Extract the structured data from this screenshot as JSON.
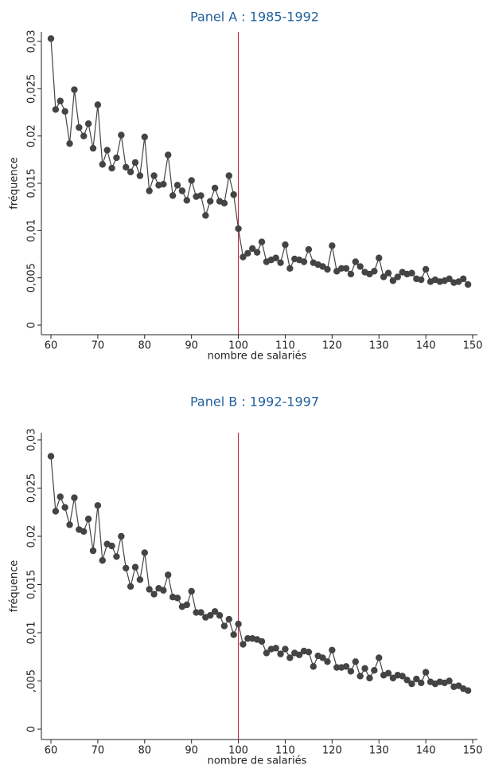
{
  "chart_data": [
    {
      "type": "line",
      "title": "Panel A : 1985-1992",
      "xlabel": "nombre de salariés",
      "ylabel": "fréquence",
      "x": [
        60,
        61,
        62,
        63,
        64,
        65,
        66,
        67,
        68,
        69,
        70,
        71,
        72,
        73,
        74,
        75,
        76,
        77,
        78,
        79,
        80,
        81,
        82,
        83,
        84,
        85,
        86,
        87,
        88,
        89,
        90,
        91,
        92,
        93,
        94,
        95,
        96,
        97,
        98,
        99,
        100,
        101,
        102,
        103,
        104,
        105,
        106,
        107,
        108,
        109,
        110,
        111,
        112,
        113,
        114,
        115,
        116,
        117,
        118,
        119,
        120,
        121,
        122,
        123,
        124,
        125,
        126,
        127,
        128,
        129,
        130,
        131,
        132,
        133,
        134,
        135,
        136,
        137,
        138,
        139,
        140,
        141,
        142,
        143,
        144,
        145,
        146,
        147,
        148,
        149
      ],
      "series": [
        {
          "color": "#444444",
          "values": [
            0.0303,
            0.0228,
            0.0237,
            0.0226,
            0.0192,
            0.0249,
            0.0209,
            0.02,
            0.0213,
            0.0187,
            0.0233,
            0.017,
            0.0185,
            0.0166,
            0.0177,
            0.0201,
            0.0167,
            0.0162,
            0.0172,
            0.0158,
            0.0199,
            0.0142,
            0.0158,
            0.0148,
            0.0149,
            0.018,
            0.0137,
            0.0148,
            0.0142,
            0.0132,
            0.0153,
            0.0136,
            0.0137,
            0.0116,
            0.0131,
            0.0145,
            0.0131,
            0.0129,
            0.0158,
            0.0138,
            0.0102,
            0.0072,
            0.0076,
            0.0081,
            0.0077,
            0.0088,
            0.0067,
            0.0069,
            0.0071,
            0.0066,
            0.0085,
            0.006,
            0.007,
            0.0069,
            0.0067,
            0.008,
            0.0066,
            0.0064,
            0.0062,
            0.0059,
            0.0084,
            0.0057,
            0.006,
            0.006,
            0.0054,
            0.0067,
            0.0062,
            0.0056,
            0.0054,
            0.0057,
            0.0071,
            0.0051,
            0.0055,
            0.0047,
            0.0051,
            0.0056,
            0.0054,
            0.0055,
            0.0049,
            0.0048,
            0.0059,
            0.0046,
            0.0048,
            0.0046,
            0.0047,
            0.0049,
            0.0045,
            0.0046,
            0.0049,
            0.0043
          ]
        }
      ],
      "xlim": [
        60,
        150
      ],
      "xticks": [
        60,
        70,
        80,
        90,
        100,
        110,
        120,
        130,
        140,
        150
      ],
      "ylim": [
        0,
        0.03
      ],
      "yticks": [
        0,
        {
          "value": 0.005,
          "label": "0,005"
        },
        {
          "value": 0.01,
          "label": "0,01"
        },
        {
          "value": 0.015,
          "label": "0,015"
        },
        {
          "value": 0.02,
          "label": "0,02"
        },
        {
          "value": 0.025,
          "label": "0,025"
        },
        {
          "value": 0.03,
          "label": "0,03"
        }
      ],
      "vline": {
        "x": 100,
        "color": "#c0304a"
      }
    },
    {
      "type": "line",
      "title": "Panel B : 1992-1997",
      "xlabel": "nombre de salariés",
      "ylabel": "fréquence",
      "x": [
        60,
        61,
        62,
        63,
        64,
        65,
        66,
        67,
        68,
        69,
        70,
        71,
        72,
        73,
        74,
        75,
        76,
        77,
        78,
        79,
        80,
        81,
        82,
        83,
        84,
        85,
        86,
        87,
        88,
        89,
        90,
        91,
        92,
        93,
        94,
        95,
        96,
        97,
        98,
        99,
        100,
        101,
        102,
        103,
        104,
        105,
        106,
        107,
        108,
        109,
        110,
        111,
        112,
        113,
        114,
        115,
        116,
        117,
        118,
        119,
        120,
        121,
        122,
        123,
        124,
        125,
        126,
        127,
        128,
        129,
        130,
        131,
        132,
        133,
        134,
        135,
        136,
        137,
        138,
        139,
        140,
        141,
        142,
        143,
        144,
        145,
        146,
        147,
        148,
        149
      ],
      "series": [
        {
          "color": "#444444",
          "values": [
            0.0283,
            0.0226,
            0.0241,
            0.023,
            0.0212,
            0.024,
            0.0207,
            0.0205,
            0.0218,
            0.0185,
            0.0232,
            0.0175,
            0.0192,
            0.019,
            0.0179,
            0.02,
            0.0167,
            0.0148,
            0.0168,
            0.0155,
            0.0183,
            0.0145,
            0.014,
            0.0146,
            0.0144,
            0.016,
            0.0137,
            0.0136,
            0.0127,
            0.0129,
            0.0143,
            0.0121,
            0.0121,
            0.0116,
            0.0118,
            0.0122,
            0.0118,
            0.0107,
            0.0114,
            0.0098,
            0.0109,
            0.0088,
            0.0094,
            0.0094,
            0.0093,
            0.0091,
            0.0079,
            0.0083,
            0.0084,
            0.0078,
            0.0083,
            0.0074,
            0.0079,
            0.0077,
            0.0081,
            0.008,
            0.0065,
            0.0076,
            0.0074,
            0.007,
            0.0082,
            0.0064,
            0.0064,
            0.0065,
            0.006,
            0.007,
            0.0055,
            0.0063,
            0.0053,
            0.0061,
            0.0074,
            0.0056,
            0.0058,
            0.0053,
            0.0056,
            0.0055,
            0.0051,
            0.0047,
            0.0052,
            0.0048,
            0.0059,
            0.0049,
            0.0047,
            0.0049,
            0.0048,
            0.005,
            0.0044,
            0.0045,
            0.0042,
            0.004
          ]
        }
      ],
      "xlim": [
        60,
        150
      ],
      "xticks": [
        60,
        70,
        80,
        90,
        100,
        110,
        120,
        130,
        140,
        150
      ],
      "ylim": [
        0,
        0.03
      ],
      "yticks": [
        0,
        {
          "value": 0.005,
          "label": ",005"
        },
        {
          "value": 0.01,
          "label": "0,01"
        },
        {
          "value": 0.015,
          "label": "0,015"
        },
        {
          "value": 0.02,
          "label": "0,02"
        },
        {
          "value": 0.025,
          "label": "0,025"
        },
        {
          "value": 0.03,
          "label": "0,03"
        }
      ],
      "vline": {
        "x": 100,
        "color": "#c0304a"
      }
    }
  ]
}
